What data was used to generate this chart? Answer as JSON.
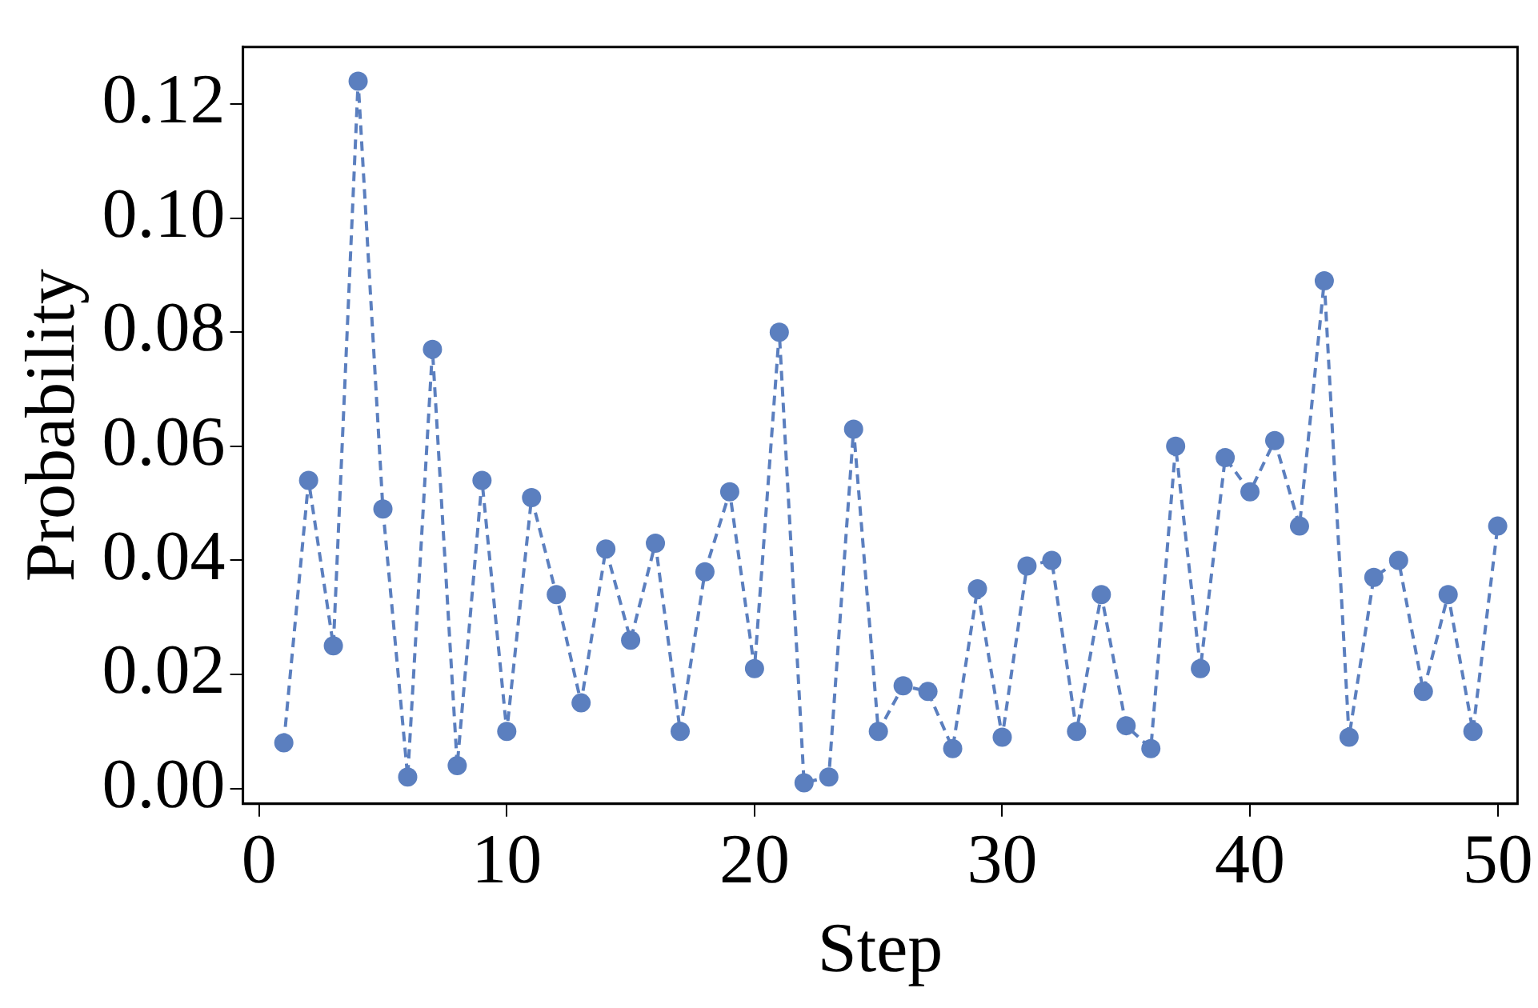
{
  "chart_data": {
    "type": "line",
    "xlabel": "Step",
    "ylabel": "Probability",
    "x": [
      1,
      2,
      3,
      4,
      5,
      6,
      7,
      8,
      9,
      10,
      11,
      12,
      13,
      14,
      15,
      16,
      17,
      18,
      19,
      20,
      21,
      22,
      23,
      24,
      25,
      26,
      27,
      28,
      29,
      30,
      31,
      32,
      33,
      34,
      35,
      36,
      37,
      38,
      39,
      40,
      41,
      42,
      43,
      44,
      45,
      46,
      47,
      48,
      49,
      50
    ],
    "series": [
      {
        "color": "#5b7fbf",
        "values": [
          0.008,
          0.054,
          0.025,
          0.124,
          0.049,
          0.002,
          0.077,
          0.004,
          0.054,
          0.01,
          0.051,
          0.034,
          0.015,
          0.042,
          0.026,
          0.043,
          0.01,
          0.038,
          0.052,
          0.021,
          0.08,
          0.001,
          0.002,
          0.063,
          0.01,
          0.018,
          0.017,
          0.007,
          0.035,
          0.009,
          0.039,
          0.04,
          0.01,
          0.034,
          0.011,
          0.007,
          0.06,
          0.021,
          0.058,
          0.052,
          0.061,
          0.046,
          0.089,
          0.009,
          0.037,
          0.04,
          0.017,
          0.034,
          0.01,
          0.046
        ]
      }
    ],
    "xlim": [
      -0.65,
      50.8
    ],
    "ylim": [
      -0.0027,
      0.13
    ],
    "xticks": [
      0,
      10,
      20,
      30,
      40,
      50
    ],
    "yticks": [
      {
        "value": 0,
        "label": "0.00"
      },
      {
        "value": 0.02,
        "label": "0.02"
      },
      {
        "value": 0.04,
        "label": "0.04"
      },
      {
        "value": 0.06,
        "label": "0.06"
      },
      {
        "value": 0.08,
        "label": "0.08"
      },
      {
        "value": 0.1,
        "label": "0.10"
      },
      {
        "value": 0.12,
        "label": "0.12"
      }
    ],
    "grid": false,
    "legend": false,
    "marker": "circle",
    "line_style": "dashed"
  }
}
